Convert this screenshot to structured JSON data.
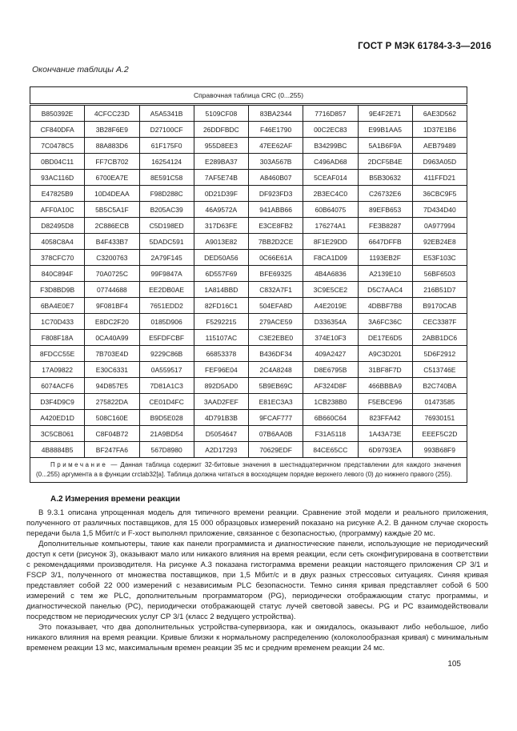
{
  "page": {
    "standard_header": "ГОСТ Р МЭК 61784-3-3—2016",
    "table_continuation_label": "Окончание таблицы А.2",
    "page_number": "105"
  },
  "crc_table": {
    "title": "Справочная таблица CRC (0...255)",
    "rows": [
      [
        "B850392E",
        "4CFCC23D",
        "A5A5341B",
        "5109CF08",
        "83BA2344",
        "7716D857",
        "9E4F2E71",
        "6AE3D562"
      ],
      [
        "CF840DFA",
        "3B28F6E9",
        "D27100CF",
        "26DDFBDC",
        "F46E1790",
        "00C2EC83",
        "E99B1AA5",
        "1D37E1B6"
      ],
      [
        "7C0478C5",
        "88A883D6",
        "61F175F0",
        "955D8EE3",
        "47EE62AF",
        "B34299BC",
        "5A1B6F9A",
        "AEB79489"
      ],
      [
        "0BD04C11",
        "FF7CB702",
        "16254124",
        "E289BA37",
        "303A567B",
        "C496AD68",
        "2DCF5B4E",
        "D963A05D"
      ],
      [
        "93AC116D",
        "6700EA7E",
        "8E591C58",
        "7AF5E74B",
        "A8460B07",
        "5CEAF014",
        "B5B30632",
        "411FFD21"
      ],
      [
        "E47825B9",
        "10D4DEAA",
        "F98D288C",
        "0D21D39F",
        "DF923FD3",
        "2B3EC4C0",
        "C26732E6",
        "36CBC9F5"
      ],
      [
        "AFF0A10C",
        "5B5C5A1F",
        "B205AC39",
        "46A9572A",
        "941ABB66",
        "60B64075",
        "89EFB653",
        "7D434D40"
      ],
      [
        "D82495D8",
        "2C886ECB",
        "C5D198ED",
        "317D63FE",
        "E3CE8FB2",
        "176274A1",
        "FE3B8287",
        "0A977994"
      ],
      [
        "4058C8A4",
        "B4F433B7",
        "5DADC591",
        "A9013E82",
        "7BB2D2CE",
        "8F1E29DD",
        "6647DFFB",
        "92EB24E8"
      ],
      [
        "378CFC70",
        "C3200763",
        "2A79F145",
        "DED50A56",
        "0C66E61A",
        "F8CA1D09",
        "1193EB2F",
        "E53F103C"
      ],
      [
        "840C894F",
        "70A0725C",
        "99F9847A",
        "6D557F69",
        "BFE69325",
        "4B4A6836",
        "A2139E10",
        "56BF6503"
      ],
      [
        "F3D8BD9B",
        "07744688",
        "EE2DB0AE",
        "1A814BBD",
        "C832A7F1",
        "3C9E5CE2",
        "D5C7AAC4",
        "216B51D7"
      ],
      [
        "6BA4E0E7",
        "9F081BF4",
        "7651EDD2",
        "82FD16C1",
        "504EFA8D",
        "A4E2019E",
        "4DBBF7B8",
        "B9170CAB"
      ],
      [
        "1C70D433",
        "E8DC2F20",
        "0185D906",
        "F5292215",
        "279ACE59",
        "D336354A",
        "3A6FC36C",
        "CEC3387F"
      ],
      [
        "F808F18A",
        "0CA40A99",
        "E5FDFCBF",
        "115107AC",
        "C3E2EBE0",
        "374E10F3",
        "DE17E6D5",
        "2ABB1DC6"
      ],
      [
        "8FDCC55E",
        "7B703E4D",
        "9229C86B",
        "66853378",
        "B436DF34",
        "409A2427",
        "A9C3D201",
        "5D6F2912"
      ],
      [
        "17A09822",
        "E30C6331",
        "0A559517",
        "FEF96E04",
        "2C4A8248",
        "D8E6795B",
        "31BF8F7D",
        "C513746E"
      ],
      [
        "6074ACF6",
        "94D857E5",
        "7D81A1C3",
        "892D5AD0",
        "5B9EB69C",
        "AF324D8F",
        "466BBBA9",
        "B2C740BA"
      ],
      [
        "D3F4D9C9",
        "275822DA",
        "CE01D4FC",
        "3AAD2FEF",
        "E81EC3A3",
        "1CB238B0",
        "F5EBCE96",
        "01473585"
      ],
      [
        "A420ED1D",
        "508C160E",
        "B9D5E028",
        "4D791B3B",
        "9FCAF777",
        "6B660C64",
        "823FFA42",
        "76930151"
      ],
      [
        "3C5CB061",
        "C8F04B72",
        "21A9BD54",
        "D5054647",
        "07B6AA0B",
        "F31A5118",
        "1A43A73E",
        "EEEF5C2D"
      ],
      [
        "4B8884B5",
        "BF247FA6",
        "567D8980",
        "A2D17293",
        "70629EDF",
        "84CE65CC",
        "6D9793EA",
        "993B68F9"
      ]
    ],
    "note_label": "Примечание",
    "note_dash": "—",
    "note_text": "Данная таблица содержит 32-битовые значения в шестнадцатеричном представлении для каждого значения (0...255) аргумента а в функции crctab32[a]. Таблица должна читаться в восходящем порядке верхнего левого (0) до нижнего правого (255)."
  },
  "section": {
    "heading": "А.2 Измерения времени реакции",
    "paragraphs": [
      "В 9.3.1 описана упрощенная модель для типичного времени реакции. Сравнение этой модели и реального приложения, полученного от различных поставщиков, для 15 000 образцовых измерений показано на рисунке А.2. В данном случае скорость передачи была 1,5 Мбит/с и F-хост выполнял приложение, связанное с безопасностью, (программу) каждые 20 мс.",
      "Дополнительные компьютеры, такие как панели программиста и диагностические панели, использующие не периодический доступ к сети (рисунок 3), оказывают мало или никакого влияния на время реакции, если сеть сконфигурирована в соответствии с рекомендациями производителя. На рисунке А.3 показана гистограмма времени реакции настоящего приложения СР 3/1 и FSCP 3/1, полученного от множества поставщиков, при 1,5 Мбит/с и в двух разных стрессовых ситуациях. Синяя кривая представляет собой 22 000 измерений с независимым PLC безопасности. Темно синяя кривая представляет собой 6 500 измерений с тем же PLC, дополнительным программатором (PG), периодически отображающим статус программы, и диагностической панелью (PC), периодически отображающей статус лучей световой завесы. PG и PC взаимодействовали посредством не периодических услуг СР 3/1 (класс 2 ведущего устройства).",
      "Это показывает, что два дополнительных устройства-супервизора, как и ожидалось, оказывают либо небольшое, либо никакого влияния на время реакции. Кривые близки к нормальному распределению (колоколообразная кривая) с минимальным временем реакции 13 мс, максимальным времен реакции 35 мс и средним временем реакции 24 мс."
    ]
  }
}
